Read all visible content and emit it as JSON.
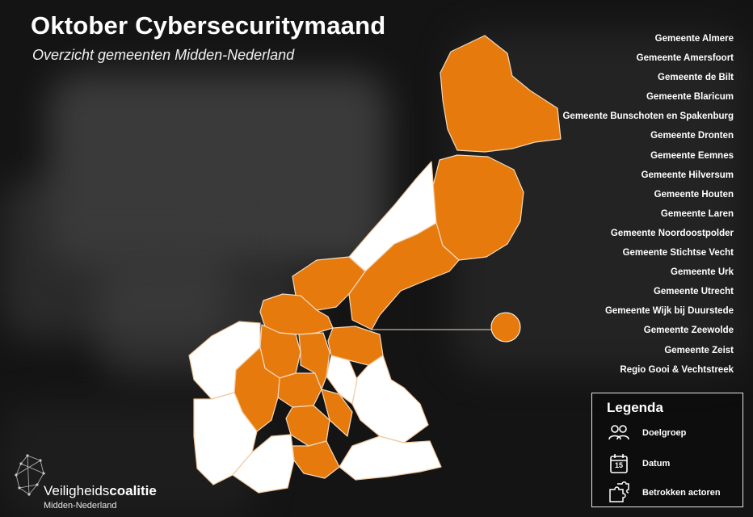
{
  "header": {
    "title": "Oktober Cybersecuritymaand",
    "subtitle": "Overzicht gemeenten Midden-Nederland"
  },
  "colors": {
    "highlight": "#E67A0C",
    "non_participating": "#FFFFFF",
    "background": "#141414"
  },
  "municipalities": [
    "Gemeente Almere",
    "Gemeente Amersfoort",
    "Gemeente de Bilt",
    "Gemeente Blaricum",
    "Gemeente Bunschoten en Spakenburg",
    "Gemeente Dronten",
    "Gemeente Eemnes",
    "Gemeente Hilversum",
    "Gemeente Houten",
    "Gemeente Laren",
    "Gemeente  Noordoostpolder",
    "Gemeente Stichtse Vecht",
    "Gemeente Urk",
    "Gemeente Utrecht",
    "Gemeente Wijk bij Duurstede",
    "Gemeente Zeewolde",
    "Gemeente Zeist",
    "Regio Gooi & Vechtstreek"
  ],
  "legend": {
    "title": "Legenda",
    "items": [
      {
        "label": "Doelgroep",
        "icon": "people-icon"
      },
      {
        "label": "Datum",
        "icon": "calendar-icon",
        "calendar_number": "15"
      },
      {
        "label": "Betrokken actoren",
        "icon": "puzzle-icon"
      }
    ]
  },
  "logo": {
    "name_light": "Veiligheids",
    "name_bold": "coalitie",
    "sub": "Midden-Nederland"
  }
}
